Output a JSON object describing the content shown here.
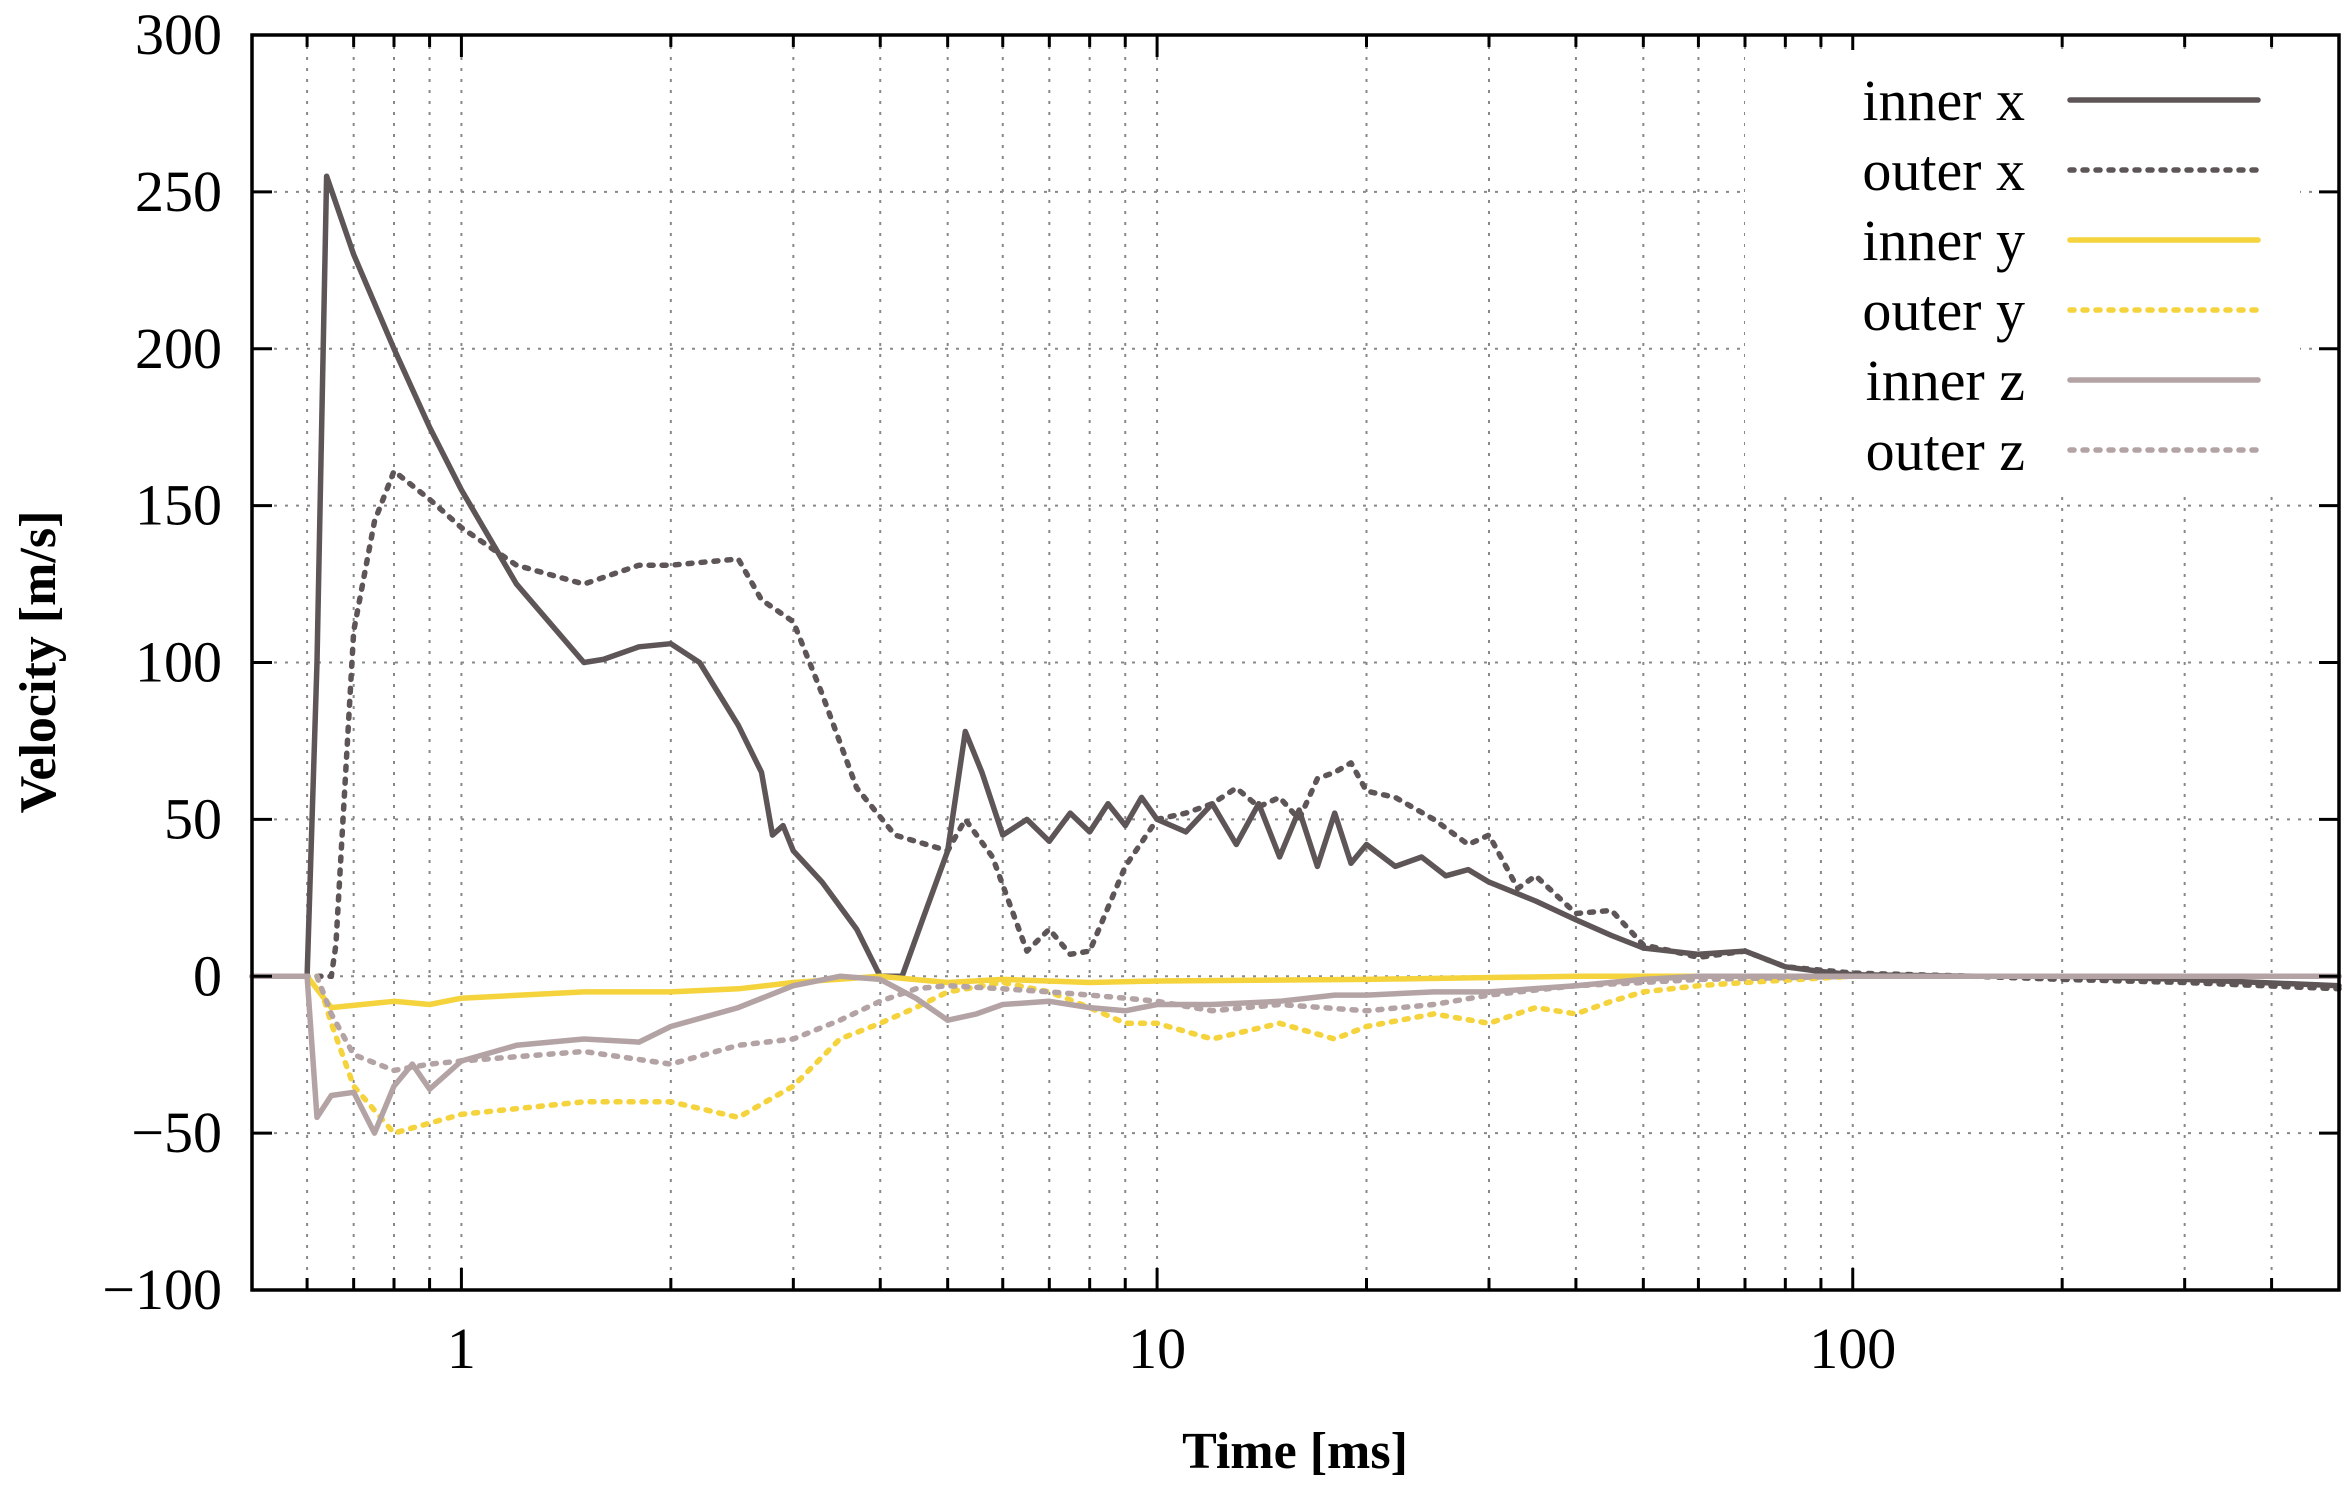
{
  "chart_data": {
    "type": "line",
    "title": "",
    "xlabel": "Time [ms]",
    "ylabel": "Velocity [m/s]",
    "xscale": "log",
    "xlim": [
      0.5,
      500
    ],
    "ylim": [
      -100,
      300
    ],
    "xticks": [
      1,
      10,
      100
    ],
    "xtick_labels": [
      "1",
      "10",
      "100"
    ],
    "yticks": [
      -100,
      -50,
      0,
      50,
      100,
      150,
      200,
      250,
      300
    ],
    "ytick_labels": [
      "−100",
      "−50",
      "0",
      "50",
      "100",
      "150",
      "200",
      "250",
      "300"
    ],
    "grid": true,
    "legend_position": "top-right",
    "series": [
      {
        "name": "inner x",
        "color": "#5e5656",
        "dash": "solid",
        "x": [
          0.5,
          0.6,
          0.62,
          0.64,
          0.7,
          0.8,
          0.9,
          1.0,
          1.2,
          1.5,
          1.6,
          1.8,
          2.0,
          2.2,
          2.5,
          2.7,
          2.8,
          2.9,
          3.0,
          3.3,
          3.7,
          4.0,
          4.3,
          4.6,
          5.0,
          5.3,
          5.6,
          6.0,
          6.5,
          7.0,
          7.5,
          8.0,
          8.5,
          9.0,
          9.5,
          10,
          11,
          12,
          13,
          14,
          15,
          16,
          17,
          18,
          19,
          20,
          22,
          24,
          26,
          28,
          30,
          35,
          40,
          45,
          50,
          60,
          70,
          80,
          90,
          100,
          150,
          200,
          300,
          500
        ],
        "y": [
          0,
          0,
          100,
          255,
          230,
          200,
          175,
          155,
          125,
          100,
          101,
          105,
          106,
          100,
          80,
          65,
          45,
          48,
          40,
          30,
          15,
          0,
          0,
          18,
          40,
          78,
          65,
          45,
          50,
          43,
          52,
          46,
          55,
          48,
          57,
          50,
          46,
          55,
          42,
          55,
          38,
          53,
          35,
          52,
          36,
          42,
          35,
          38,
          32,
          34,
          30,
          24,
          18,
          13,
          9,
          7,
          8,
          3,
          1.5,
          0.5,
          0,
          0,
          -1,
          -3
        ]
      },
      {
        "name": "outer x",
        "color": "#5e5656",
        "dash": "4 9",
        "x": [
          0.5,
          0.65,
          0.66,
          0.7,
          0.75,
          0.8,
          0.9,
          1.0,
          1.2,
          1.5,
          1.8,
          2.0,
          2.5,
          2.7,
          3.0,
          3.3,
          3.7,
          4.2,
          5.0,
          5.3,
          5.8,
          6.5,
          7.0,
          7.5,
          8.0,
          9.0,
          10,
          11,
          12,
          13,
          14,
          15,
          16,
          17,
          18,
          19,
          20,
          22,
          25,
          28,
          30,
          33,
          35,
          40,
          45,
          50,
          55,
          60,
          70,
          80,
          100,
          150,
          200,
          300,
          500
        ],
        "y": [
          0,
          0,
          10,
          110,
          145,
          161,
          152,
          143,
          131,
          125,
          131,
          131,
          133,
          120,
          113,
          90,
          60,
          45,
          40,
          50,
          38,
          8,
          15,
          7,
          8,
          35,
          50,
          52,
          55,
          60,
          54,
          57,
          50,
          63,
          65,
          68,
          59,
          57,
          50,
          42,
          45,
          28,
          32,
          20,
          21,
          10,
          8,
          6,
          8,
          3,
          1,
          0,
          -1,
          -2,
          -4
        ]
      },
      {
        "name": "inner y",
        "color": "#f5d33c",
        "dash": "solid",
        "x": [
          0.5,
          0.6,
          0.65,
          0.8,
          0.9,
          1.0,
          1.5,
          2.0,
          2.5,
          3.0,
          4.0,
          5.0,
          6.0,
          8.0,
          10,
          20,
          40,
          60,
          100,
          500
        ],
        "y": [
          0,
          0,
          -10,
          -8,
          -9,
          -7,
          -5,
          -5,
          -4,
          -2,
          0,
          -2,
          -1,
          -2,
          -1.5,
          -1,
          0,
          0,
          0,
          0
        ]
      },
      {
        "name": "outer y",
        "color": "#f5d33c",
        "dash": "4 9",
        "x": [
          0.5,
          0.62,
          0.65,
          0.7,
          0.8,
          1.0,
          1.5,
          2.0,
          2.5,
          3.0,
          3.5,
          4.0,
          4.5,
          5.0,
          6.0,
          7.0,
          8.0,
          9.0,
          10,
          12,
          15,
          18,
          20,
          25,
          30,
          35,
          40,
          45,
          50,
          60,
          70,
          100,
          500
        ],
        "y": [
          0,
          0,
          -15,
          -35,
          -50,
          -44,
          -40,
          -40,
          -45,
          -35,
          -20,
          -15,
          -10,
          -5,
          -2,
          -5,
          -10,
          -15,
          -15,
          -20,
          -15,
          -20,
          -16,
          -12,
          -15,
          -10,
          -12,
          -8,
          -5,
          -3,
          -2,
          0,
          0
        ]
      },
      {
        "name": "inner z",
        "color": "#b4a3a5",
        "dash": "solid",
        "x": [
          0.5,
          0.6,
          0.62,
          0.65,
          0.7,
          0.75,
          0.8,
          0.85,
          0.9,
          1.0,
          1.2,
          1.5,
          1.8,
          2.0,
          2.5,
          3.0,
          3.5,
          4.0,
          4.5,
          5.0,
          5.5,
          6.0,
          7.0,
          8.0,
          9.0,
          10,
          12,
          15,
          18,
          20,
          25,
          30,
          40,
          50,
          60,
          100,
          500
        ],
        "y": [
          0,
          0,
          -45,
          -38,
          -37,
          -50,
          -35,
          -28,
          -36,
          -27,
          -22,
          -20,
          -21,
          -16,
          -10,
          -3,
          0,
          -1,
          -7,
          -14,
          -12,
          -9,
          -8,
          -10,
          -11,
          -9,
          -9,
          -8,
          -6,
          -6,
          -5,
          -5,
          -3,
          -1,
          0,
          0,
          0
        ]
      },
      {
        "name": "outer z",
        "color": "#b4a3a5",
        "dash": "4 9",
        "x": [
          0.5,
          0.62,
          0.65,
          0.7,
          0.8,
          0.9,
          1.0,
          1.5,
          2.0,
          2.5,
          3.0,
          3.5,
          4.0,
          4.5,
          5.0,
          6.0,
          7.0,
          8.0,
          9.0,
          10,
          12,
          15,
          20,
          25,
          30,
          40,
          50,
          60,
          100,
          500
        ],
        "y": [
          0,
          0,
          -12,
          -25,
          -30,
          -28,
          -27,
          -24,
          -28,
          -22,
          -20,
          -14,
          -8,
          -4,
          -3,
          -4,
          -5,
          -6,
          -7,
          -8,
          -11,
          -9,
          -11,
          -9,
          -6,
          -3,
          -2,
          -1,
          0,
          0
        ]
      }
    ]
  }
}
